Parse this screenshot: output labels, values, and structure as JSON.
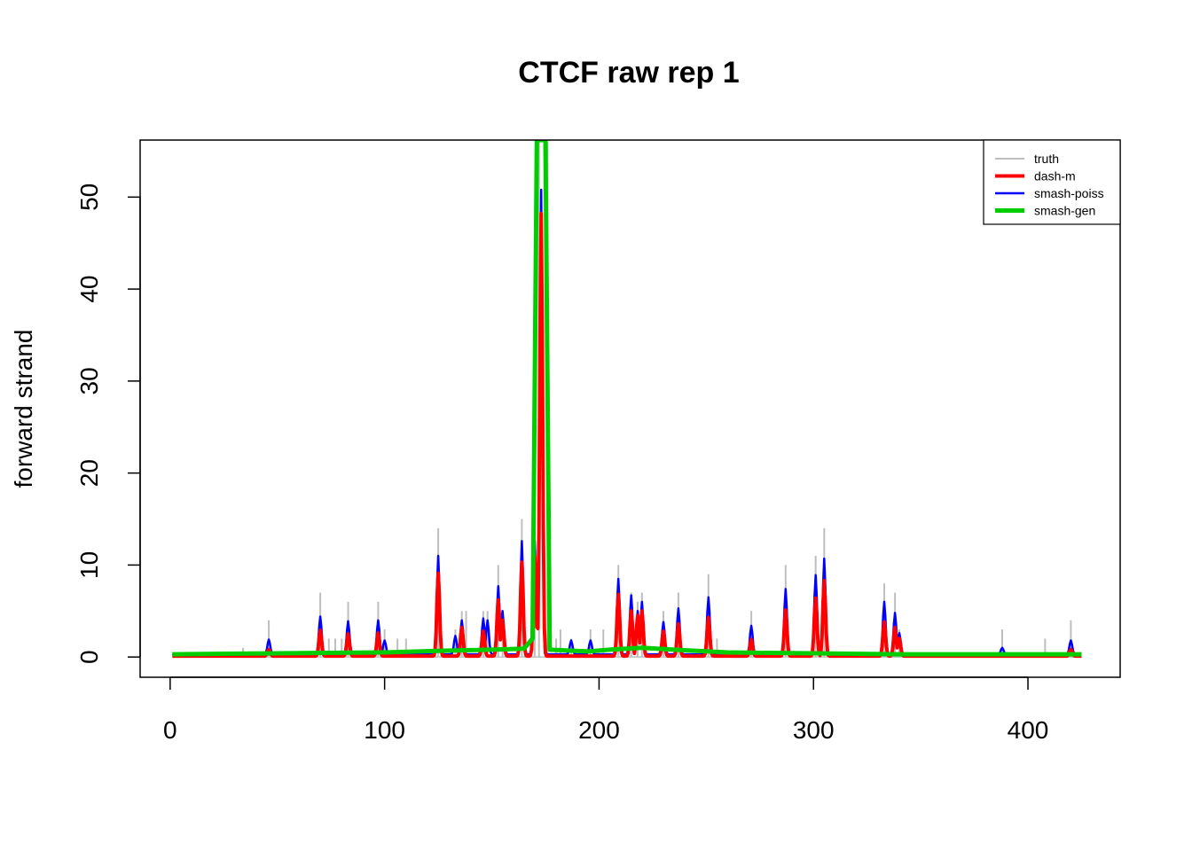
{
  "chart_data": {
    "type": "line",
    "title": "CTCF raw rep 1",
    "xlabel": "",
    "ylabel": "forward strand",
    "xlim": [
      -14,
      443
    ],
    "ylim": [
      -2.2,
      56.2
    ],
    "xticks": [
      0,
      100,
      200,
      300,
      400
    ],
    "yticks": [
      0,
      10,
      20,
      30,
      40,
      50
    ],
    "grid": false,
    "legend": {
      "placement": "top-right",
      "entries": [
        {
          "name": "truth",
          "color": "#bebebe"
        },
        {
          "name": "dash-m",
          "color": "#ff0000"
        },
        {
          "name": "smash-poiss",
          "color": "#0000ff"
        },
        {
          "name": "smash-gen",
          "color": "#00cd00"
        }
      ]
    },
    "x_range": [
      1,
      425
    ],
    "series": [
      {
        "name": "truth",
        "color": "#bebebe",
        "style": "spikes",
        "points": [
          [
            34,
            1
          ],
          [
            46,
            4
          ],
          [
            70,
            7
          ],
          [
            74,
            2
          ],
          [
            77,
            2
          ],
          [
            80,
            2
          ],
          [
            83,
            6
          ],
          [
            97,
            6
          ],
          [
            100,
            3
          ],
          [
            106,
            2
          ],
          [
            110,
            2
          ],
          [
            125,
            14
          ],
          [
            133,
            3
          ],
          [
            136,
            5
          ],
          [
            138,
            5
          ],
          [
            146,
            5
          ],
          [
            148,
            5
          ],
          [
            153,
            10
          ],
          [
            155,
            5
          ],
          [
            164,
            15
          ],
          [
            170,
            13
          ],
          [
            172,
            56
          ],
          [
            176,
            56
          ],
          [
            180,
            2
          ],
          [
            182,
            3
          ],
          [
            187,
            2
          ],
          [
            196,
            3
          ],
          [
            202,
            3
          ],
          [
            209,
            10
          ],
          [
            215,
            7
          ],
          [
            218,
            6
          ],
          [
            220,
            7
          ],
          [
            230,
            5
          ],
          [
            237,
            7
          ],
          [
            251,
            9
          ],
          [
            255,
            2
          ],
          [
            271,
            5
          ],
          [
            287,
            10
          ],
          [
            301,
            11
          ],
          [
            305,
            14
          ],
          [
            333,
            8
          ],
          [
            338,
            7
          ],
          [
            340,
            3
          ],
          [
            388,
            3
          ],
          [
            408,
            2
          ],
          [
            420,
            4
          ]
        ]
      },
      {
        "name": "smash-poiss",
        "color": "#0000ff",
        "style": "line",
        "peaks": [
          [
            46,
            1.9
          ],
          [
            70,
            4.4
          ],
          [
            83,
            3.9
          ],
          [
            97,
            4.0
          ],
          [
            100,
            1.8
          ],
          [
            125,
            11.0
          ],
          [
            133,
            2.3
          ],
          [
            136,
            4.0
          ],
          [
            146,
            4.2
          ],
          [
            148,
            4.0
          ],
          [
            153,
            7.7
          ],
          [
            155,
            5.0
          ],
          [
            164,
            12.6
          ],
          [
            170,
            12.7
          ],
          [
            173,
            50.8
          ],
          [
            187,
            1.8
          ],
          [
            196,
            1.8
          ],
          [
            209,
            8.5
          ],
          [
            215,
            6.7
          ],
          [
            218,
            5.0
          ],
          [
            220,
            6.0
          ],
          [
            230,
            3.8
          ],
          [
            237,
            5.3
          ],
          [
            251,
            6.5
          ],
          [
            271,
            3.4
          ],
          [
            287,
            7.4
          ],
          [
            301,
            8.9
          ],
          [
            305,
            10.7
          ],
          [
            333,
            6.0
          ],
          [
            338,
            4.8
          ],
          [
            340,
            2.6
          ],
          [
            388,
            1.0
          ],
          [
            420,
            1.8
          ]
        ]
      },
      {
        "name": "dash-m",
        "color": "#ff0000",
        "style": "line",
        "peaks": [
          [
            46,
            0.8
          ],
          [
            70,
            2.9
          ],
          [
            83,
            2.5
          ],
          [
            97,
            2.6
          ],
          [
            125,
            9.1
          ],
          [
            136,
            3.2
          ],
          [
            146,
            2.8
          ],
          [
            153,
            6.2
          ],
          [
            155,
            4.0
          ],
          [
            164,
            10.3
          ],
          [
            170,
            11.0
          ],
          [
            173,
            48.2
          ],
          [
            209,
            6.8
          ],
          [
            215,
            5.0
          ],
          [
            218,
            4.5
          ],
          [
            220,
            5.0
          ],
          [
            230,
            2.8
          ],
          [
            237,
            3.6
          ],
          [
            251,
            4.3
          ],
          [
            271,
            1.9
          ],
          [
            287,
            5.1
          ],
          [
            301,
            6.4
          ],
          [
            305,
            8.3
          ],
          [
            333,
            3.8
          ],
          [
            338,
            3.2
          ],
          [
            340,
            2.0
          ],
          [
            420,
            0.8
          ]
        ]
      },
      {
        "name": "smash-gen",
        "color": "#00cd00",
        "style": "line",
        "points": [
          [
            1,
            0.3
          ],
          [
            50,
            0.4
          ],
          [
            100,
            0.5
          ],
          [
            130,
            0.7
          ],
          [
            150,
            0.8
          ],
          [
            165,
            0.9
          ],
          [
            169,
            2.0
          ],
          [
            171,
            56.2
          ],
          [
            175,
            56.2
          ],
          [
            177,
            0.8
          ],
          [
            195,
            0.6
          ],
          [
            205,
            0.8
          ],
          [
            220,
            1.0
          ],
          [
            235,
            0.8
          ],
          [
            260,
            0.5
          ],
          [
            300,
            0.4
          ],
          [
            340,
            0.3
          ],
          [
            390,
            0.3
          ],
          [
            425,
            0.3
          ]
        ]
      }
    ]
  }
}
